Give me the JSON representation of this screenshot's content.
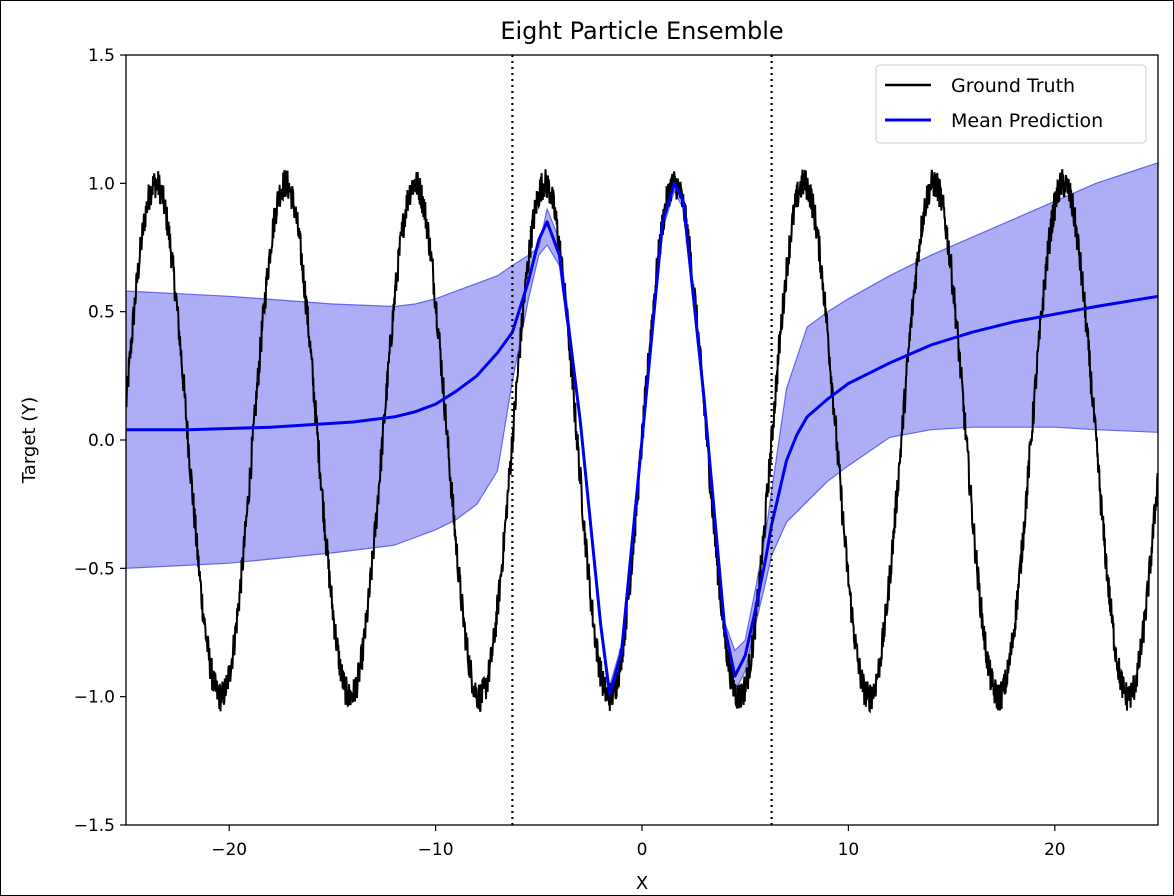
{
  "chart_data": {
    "type": "line",
    "title": "Eight Particle Ensemble",
    "xlabel": "X",
    "ylabel": "Target (Y)",
    "xlim": [
      -25,
      25
    ],
    "ylim": [
      -1.5,
      1.5
    ],
    "xticks": [
      -20,
      -10,
      0,
      10,
      20
    ],
    "xtick_labels": [
      "−20",
      "−10",
      "0",
      "10",
      "20"
    ],
    "yticks": [
      -1.5,
      -1.0,
      -0.5,
      0.0,
      0.5,
      1.0,
      1.5
    ],
    "ytick_labels": [
      "−1.5",
      "−1.0",
      "−0.5",
      "0.0",
      "0.5",
      "1.0",
      "1.5"
    ],
    "grid": false,
    "legend_position": "top-right",
    "vlines": [
      {
        "x": -6.28,
        "style": "dotted",
        "color": "#000000"
      },
      {
        "x": 6.28,
        "style": "dotted",
        "color": "#000000"
      }
    ],
    "series": [
      {
        "name": "Ground Truth",
        "color": "#000000",
        "function": "sin(x) + noise",
        "noise_amplitude": 0.06,
        "x_range": [
          -25,
          25
        ]
      },
      {
        "name": "Mean Prediction",
        "color": "#0000ee",
        "x": [
          -25,
          -22,
          -20,
          -18,
          -16,
          -14,
          -12,
          -11,
          -10,
          -9,
          -8,
          -7,
          -6.28,
          -5.5,
          -5,
          -4.6,
          -4,
          -3,
          -2,
          -1.57,
          -1,
          0,
          1,
          1.57,
          2,
          3,
          4,
          4.5,
          5,
          5.5,
          6,
          6.28,
          6.6,
          7,
          7.5,
          8,
          9,
          10,
          12,
          14,
          16,
          18,
          20,
          22,
          25
        ],
        "y": [
          0.04,
          0.04,
          0.045,
          0.05,
          0.06,
          0.07,
          0.09,
          0.11,
          0.14,
          0.19,
          0.25,
          0.34,
          0.42,
          0.62,
          0.78,
          0.85,
          0.72,
          0.08,
          -0.72,
          -0.99,
          -0.83,
          0.0,
          0.85,
          1.0,
          0.93,
          0.17,
          -0.73,
          -0.92,
          -0.84,
          -0.66,
          -0.46,
          -0.33,
          -0.22,
          -0.08,
          0.02,
          0.09,
          0.16,
          0.22,
          0.3,
          0.37,
          0.42,
          0.46,
          0.49,
          0.52,
          0.56
        ]
      }
    ],
    "band": {
      "color": "#6b6bee",
      "opacity": 0.55,
      "x": [
        -25,
        -20,
        -15,
        -12,
        -11,
        -10,
        -9,
        -8,
        -7,
        -6.28,
        -5.5,
        -5,
        -4.6,
        -4,
        -3,
        -2,
        -1.57,
        -1,
        0,
        1,
        1.57,
        2,
        3,
        4,
        4.5,
        5,
        5.5,
        6,
        6.28,
        7,
        7.5,
        8,
        9,
        10,
        12,
        14,
        16,
        18,
        20,
        22,
        25
      ],
      "upper": [
        0.58,
        0.56,
        0.53,
        0.52,
        0.53,
        0.55,
        0.58,
        0.61,
        0.64,
        0.68,
        0.72,
        0.75,
        0.9,
        0.78,
        0.1,
        -0.7,
        -0.96,
        -0.8,
        0.02,
        0.86,
        1.02,
        0.95,
        0.18,
        -0.71,
        -0.82,
        -0.78,
        -0.58,
        -0.36,
        -0.2,
        0.2,
        0.32,
        0.44,
        0.5,
        0.55,
        0.64,
        0.72,
        0.79,
        0.86,
        0.93,
        1.0,
        1.08
      ],
      "lower": [
        -0.5,
        -0.48,
        -0.44,
        -0.41,
        -0.38,
        -0.35,
        -0.31,
        -0.25,
        -0.12,
        0.23,
        0.55,
        0.72,
        0.76,
        0.68,
        0.06,
        -0.74,
        -1.01,
        -0.86,
        -0.02,
        0.82,
        0.97,
        0.9,
        0.15,
        -0.76,
        -0.98,
        -0.9,
        -0.72,
        -0.55,
        -0.45,
        -0.32,
        -0.28,
        -0.24,
        -0.16,
        -0.1,
        0.01,
        0.04,
        0.05,
        0.05,
        0.05,
        0.04,
        0.03
      ]
    }
  }
}
